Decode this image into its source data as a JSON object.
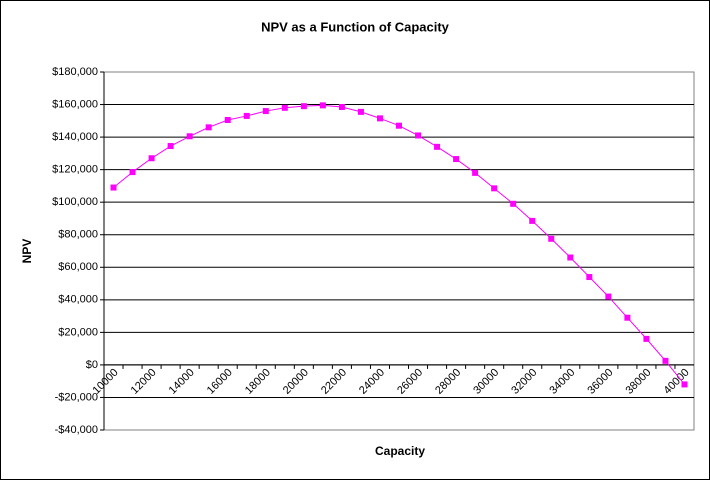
{
  "chart_data": {
    "type": "line",
    "title": "NPV as a Function of Capacity",
    "x_label": "Capacity",
    "y_label": "NPV",
    "categories": [
      "10000",
      null,
      "12000",
      null,
      "14000",
      null,
      "16000",
      null,
      "18000",
      null,
      "20000",
      null,
      "22000",
      null,
      "24000",
      null,
      "26000",
      null,
      "28000",
      null,
      "30000",
      null,
      "32000",
      null,
      "34000",
      null,
      "36000",
      null,
      "38000",
      null,
      "40000"
    ],
    "series": [
      {
        "name": "NPV",
        "color": "#ff00ff",
        "values": [
          109000,
          118500,
          127000,
          134500,
          140500,
          146000,
          150500,
          153000,
          156000,
          158000,
          159000,
          159500,
          158500,
          155500,
          151500,
          147000,
          141000,
          134000,
          126500,
          118000,
          108500,
          99000,
          88500,
          77500,
          66000,
          54000,
          42000,
          29000,
          16000,
          2500,
          -12000
        ]
      }
    ],
    "ylim": [
      -40000,
      180000
    ],
    "yticks": [
      {
        "value": -40000,
        "label": "-$40,000"
      },
      {
        "value": -20000,
        "label": "-$20,000"
      },
      {
        "value": 0,
        "label": "$0"
      },
      {
        "value": 20000,
        "label": "$20,000"
      },
      {
        "value": 40000,
        "label": "$40,000"
      },
      {
        "value": 60000,
        "label": "$60,000"
      },
      {
        "value": 80000,
        "label": "$80,000"
      },
      {
        "value": 100000,
        "label": "$100,000"
      },
      {
        "value": 120000,
        "label": "$120,000"
      },
      {
        "value": 140000,
        "label": "$140,000"
      },
      {
        "value": 160000,
        "label": "$160,000"
      },
      {
        "value": 180000,
        "label": "$180,000"
      }
    ],
    "grid": true
  }
}
